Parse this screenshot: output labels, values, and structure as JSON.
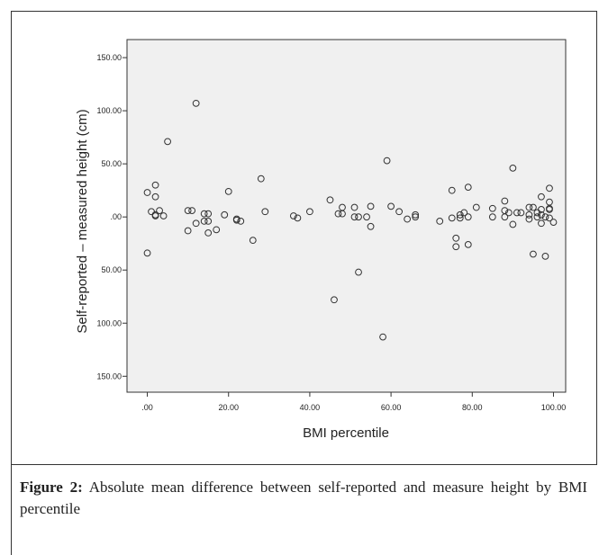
{
  "chart_data": {
    "type": "scatter",
    "title": "",
    "xlabel": "BMI percentile",
    "ylabel": "Self-reported – measured height (cm)",
    "xlim": [
      -5,
      103
    ],
    "ylim": [
      -165,
      167
    ],
    "xticks": [
      0,
      20,
      40,
      60,
      80,
      100
    ],
    "xtick_labels": [
      ".00",
      "20.00",
      "40.00",
      "60.00",
      "80.00",
      "100.00"
    ],
    "yticks": [
      150,
      100,
      50,
      0,
      -50,
      -100,
      -150
    ],
    "ytick_labels": [
      "150.00",
      "100.00",
      "50.00",
      ".00",
      "50.00",
      "100.00",
      "150.00"
    ],
    "grid": false,
    "legend": "none",
    "colors": {
      "plot_background": "#f0f0f0",
      "marker_edge": "#333333",
      "axis": "#333333"
    },
    "points": [
      {
        "x": 0,
        "y": 23
      },
      {
        "x": 0,
        "y": -34
      },
      {
        "x": 1,
        "y": 5
      },
      {
        "x": 2,
        "y": 30
      },
      {
        "x": 2,
        "y": 19
      },
      {
        "x": 2,
        "y": 2
      },
      {
        "x": 2,
        "y": 1
      },
      {
        "x": 3,
        "y": 6
      },
      {
        "x": 4,
        "y": 1
      },
      {
        "x": 5,
        "y": 71
      },
      {
        "x": 10,
        "y": 6
      },
      {
        "x": 10,
        "y": -13
      },
      {
        "x": 11,
        "y": 6
      },
      {
        "x": 12,
        "y": 107
      },
      {
        "x": 12,
        "y": -6
      },
      {
        "x": 14,
        "y": 3
      },
      {
        "x": 14,
        "y": -4
      },
      {
        "x": 15,
        "y": 3
      },
      {
        "x": 15,
        "y": -4
      },
      {
        "x": 15,
        "y": -15
      },
      {
        "x": 17,
        "y": -12
      },
      {
        "x": 19,
        "y": 2
      },
      {
        "x": 20,
        "y": 24
      },
      {
        "x": 22,
        "y": -2
      },
      {
        "x": 22,
        "y": -3
      },
      {
        "x": 23,
        "y": -4
      },
      {
        "x": 26,
        "y": -22
      },
      {
        "x": 28,
        "y": 36
      },
      {
        "x": 29,
        "y": 5
      },
      {
        "x": 36,
        "y": 1
      },
      {
        "x": 37,
        "y": -1
      },
      {
        "x": 40,
        "y": 5
      },
      {
        "x": 45,
        "y": 16
      },
      {
        "x": 46,
        "y": -78
      },
      {
        "x": 47,
        "y": 3
      },
      {
        "x": 48,
        "y": 9
      },
      {
        "x": 48,
        "y": 3
      },
      {
        "x": 51,
        "y": 9
      },
      {
        "x": 51,
        "y": 0
      },
      {
        "x": 52,
        "y": 0
      },
      {
        "x": 52,
        "y": -52
      },
      {
        "x": 54,
        "y": 0
      },
      {
        "x": 55,
        "y": 10
      },
      {
        "x": 55,
        "y": -9
      },
      {
        "x": 58,
        "y": -113
      },
      {
        "x": 59,
        "y": 53
      },
      {
        "x": 60,
        "y": 10
      },
      {
        "x": 62,
        "y": 5
      },
      {
        "x": 64,
        "y": -2
      },
      {
        "x": 66,
        "y": 2
      },
      {
        "x": 66,
        "y": 0
      },
      {
        "x": 72,
        "y": -4
      },
      {
        "x": 75,
        "y": 25
      },
      {
        "x": 75,
        "y": -1
      },
      {
        "x": 76,
        "y": -20
      },
      {
        "x": 76,
        "y": -28
      },
      {
        "x": 77,
        "y": 2
      },
      {
        "x": 77,
        "y": -1
      },
      {
        "x": 78,
        "y": 4
      },
      {
        "x": 79,
        "y": 28
      },
      {
        "x": 79,
        "y": 0
      },
      {
        "x": 79,
        "y": -26
      },
      {
        "x": 81,
        "y": 9
      },
      {
        "x": 85,
        "y": 8
      },
      {
        "x": 85,
        "y": 0
      },
      {
        "x": 88,
        "y": 15
      },
      {
        "x": 88,
        "y": 6
      },
      {
        "x": 88,
        "y": 0
      },
      {
        "x": 89,
        "y": 4
      },
      {
        "x": 90,
        "y": 46
      },
      {
        "x": 90,
        "y": -7
      },
      {
        "x": 91,
        "y": 4
      },
      {
        "x": 92,
        "y": 4
      },
      {
        "x": 94,
        "y": 9
      },
      {
        "x": 94,
        "y": 2
      },
      {
        "x": 94,
        "y": -2
      },
      {
        "x": 95,
        "y": -35
      },
      {
        "x": 95,
        "y": 9
      },
      {
        "x": 96,
        "y": 4
      },
      {
        "x": 96,
        "y": 0
      },
      {
        "x": 97,
        "y": 19
      },
      {
        "x": 97,
        "y": 7
      },
      {
        "x": 97,
        "y": 2
      },
      {
        "x": 97,
        "y": -6
      },
      {
        "x": 98,
        "y": -37
      },
      {
        "x": 98,
        "y": 0
      },
      {
        "x": 99,
        "y": 27
      },
      {
        "x": 99,
        "y": 14
      },
      {
        "x": 99,
        "y": 8
      },
      {
        "x": 99,
        "y": 7
      },
      {
        "x": 99,
        "y": -1
      },
      {
        "x": 100,
        "y": -5
      }
    ]
  },
  "caption": {
    "label": "Figure 2:",
    "text": " Absolute mean difference between self-reported and measure height by BMI percentile"
  }
}
